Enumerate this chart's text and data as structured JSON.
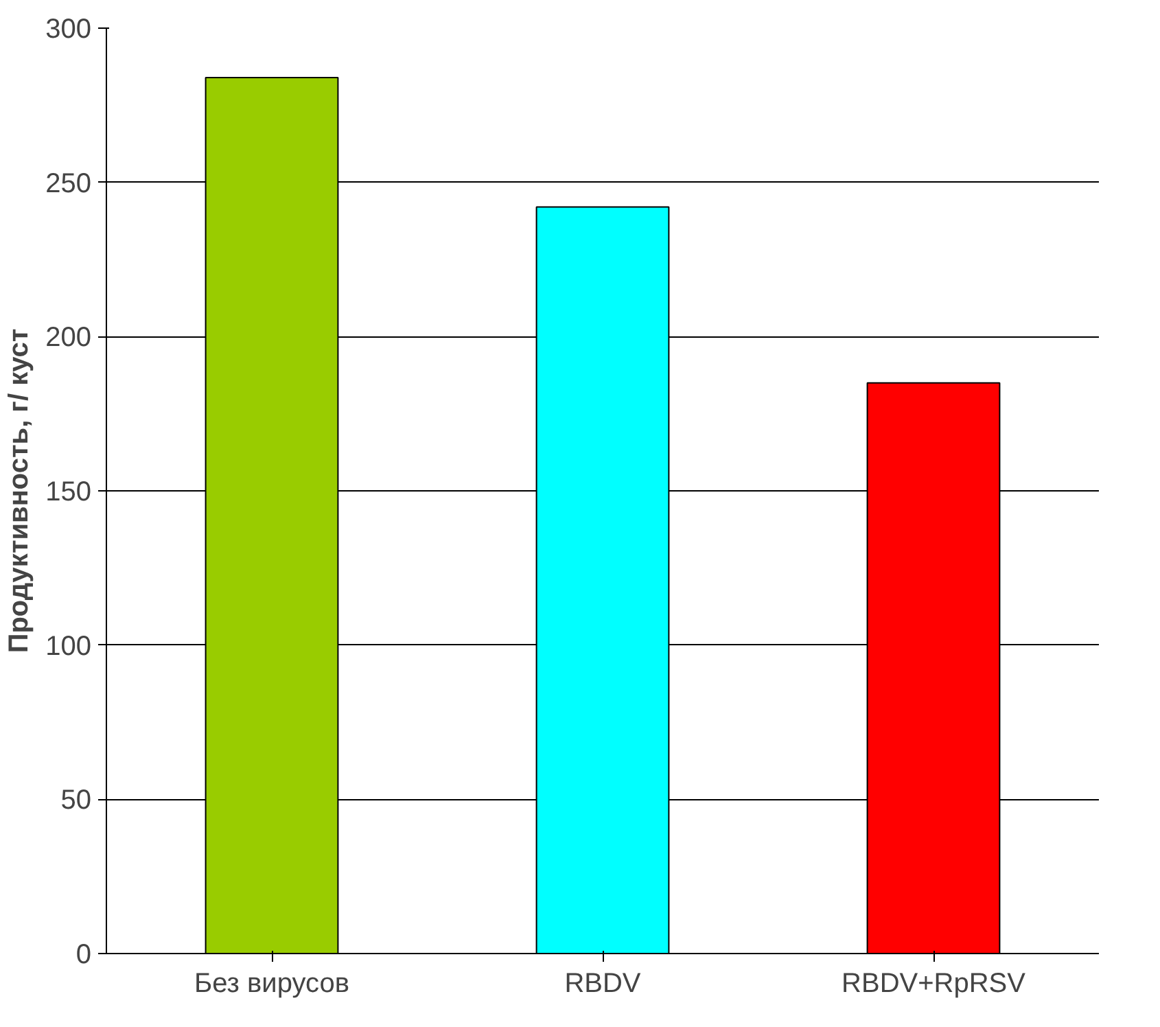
{
  "chart_data": {
    "type": "bar",
    "ylabel": "Продуктивность, г/ куст",
    "categories": [
      "Без вирусов",
      "RBDV",
      "RBDV+RpRSV"
    ],
    "values": [
      284,
      242,
      185
    ],
    "colors": [
      "#99cc00",
      "#00ffff",
      "#ff0000"
    ],
    "ylim": [
      0,
      300
    ],
    "yticks": [
      0,
      50,
      100,
      150,
      200,
      250,
      300
    ],
    "grid": "y"
  }
}
